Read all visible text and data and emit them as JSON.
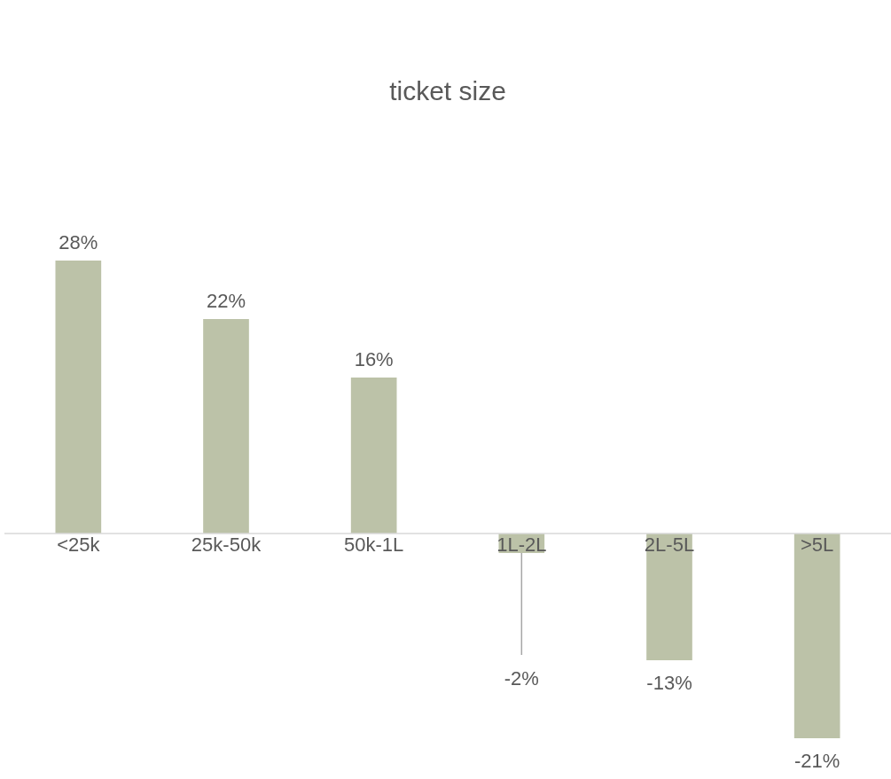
{
  "chart_data": {
    "type": "bar",
    "title": "ticket size",
    "categories": [
      "<25k",
      "25k-50k",
      "50k-1L",
      "1L-2L",
      "2L-5L",
      ">5L"
    ],
    "values": [
      28,
      22,
      16,
      -2,
      -13,
      -21
    ],
    "value_labels": [
      "28%",
      "22%",
      "16%",
      "-2%",
      "-13%",
      "-21%"
    ],
    "color": "#bcc2a8"
  }
}
